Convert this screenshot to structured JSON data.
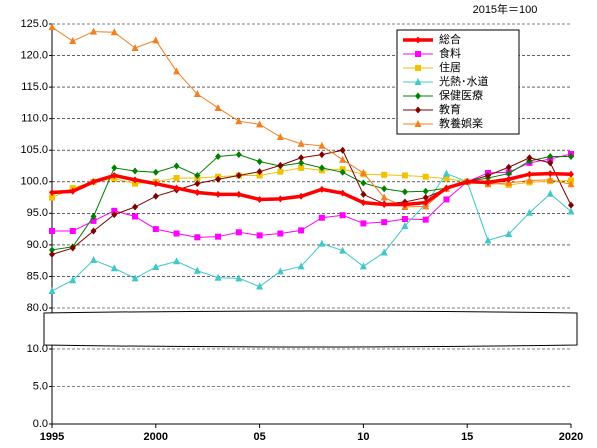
{
  "chart_data": {
    "type": "line",
    "annotation": "2015年＝100",
    "x": [
      1995,
      1996,
      1997,
      1998,
      1999,
      2000,
      2001,
      2002,
      2003,
      2004,
      2005,
      2006,
      2007,
      2008,
      2009,
      2010,
      2011,
      2012,
      2013,
      2014,
      2015,
      2016,
      2017,
      2018,
      2019,
      2020
    ],
    "xlim": [
      1995,
      2020
    ],
    "xticks": [
      1995,
      2000,
      {
        "value": 2005,
        "label": "05"
      },
      {
        "value": 2010,
        "label": "10"
      },
      {
        "value": 2015,
        "label": "15"
      },
      2020
    ],
    "ylim": [
      0,
      125
    ],
    "ybreak": [
      10,
      80
    ],
    "yticks": [
      {
        "value": 125,
        "label": "125.0"
      },
      {
        "value": 120,
        "label": "120.0"
      },
      {
        "value": 115,
        "label": "115.0"
      },
      {
        "value": 110,
        "label": "110.0"
      },
      {
        "value": 105,
        "label": "105.0"
      },
      {
        "value": 100,
        "label": "100.0"
      },
      {
        "value": 95,
        "label": "95.0"
      },
      {
        "value": 90,
        "label": "90.0"
      },
      {
        "value": 85,
        "label": "85.0"
      },
      {
        "value": 80,
        "label": "80.0"
      },
      {
        "value": 10,
        "label": "10.0"
      },
      {
        "value": 5,
        "label": "5.0"
      },
      {
        "value": 0,
        "label": "0.0"
      }
    ],
    "grid": true,
    "legend": "top-right",
    "series": [
      {
        "name": "総合",
        "color": "#ff0000",
        "marker": "diamond",
        "width": 3.5,
        "values": [
          98.3,
          98.5,
          100,
          101,
          100.3,
          99.7,
          99,
          98.3,
          98,
          98,
          97.2,
          97.3,
          97.7,
          98.8,
          98.2,
          96.7,
          96.4,
          96.4,
          96.7,
          99,
          100,
          99.9,
          100.4,
          101.2,
          101.3,
          101.2
        ]
      },
      {
        "name": "食料",
        "color": "#ff00ff",
        "marker": "square",
        "width": 1,
        "values": [
          92.2,
          92.2,
          93.8,
          95.4,
          94.5,
          92.5,
          91.8,
          91.2,
          91.3,
          92,
          91.5,
          91.8,
          92.3,
          94.3,
          94.7,
          93.4,
          93.6,
          94.1,
          94,
          97.2,
          100,
          101.4,
          101.5,
          103,
          103.6,
          104.4
        ]
      },
      {
        "name": "住居",
        "color": "#f2c200",
        "marker": "square",
        "width": 1,
        "values": [
          97.5,
          99,
          100,
          100.5,
          99.7,
          100,
          100.6,
          100.6,
          100.8,
          101,
          101,
          101.6,
          102.2,
          101.8,
          102,
          101.2,
          101.1,
          101,
          100.8,
          100.5,
          100,
          99.8,
          99.5,
          99.9,
          100.1,
          100.2
        ]
      },
      {
        "name": "光熱･水道",
        "color": "#40c8c8",
        "marker": "triangle",
        "width": 1,
        "values": [
          82.7,
          84.4,
          87.6,
          86.3,
          84.7,
          86.5,
          87.4,
          85.9,
          84.8,
          84.7,
          83.4,
          85.8,
          86.6,
          90.2,
          89.1,
          86.6,
          88.8,
          93,
          96.5,
          101.3,
          100,
          90.7,
          91.7,
          95.1,
          98.1,
          95.3
        ]
      },
      {
        "name": "保健医療",
        "color": "#008000",
        "marker": "diamond",
        "width": 1,
        "values": [
          89.2,
          89.7,
          94.5,
          102.2,
          101.7,
          101.5,
          102.5,
          101,
          104,
          104.3,
          103.2,
          102.5,
          103,
          102.2,
          101.5,
          99.8,
          98.9,
          98.4,
          98.5,
          99,
          100,
          100.6,
          101.3,
          103.3,
          104,
          104
        ]
      },
      {
        "name": "教育",
        "color": "#800000",
        "marker": "diamond",
        "width": 1,
        "values": [
          88.5,
          89.5,
          92.2,
          94.8,
          96,
          97.7,
          98.7,
          99.7,
          100.4,
          101,
          101.6,
          102.6,
          103.8,
          104.3,
          105,
          98,
          96.5,
          96.8,
          97.5,
          98.9,
          100,
          101,
          102.3,
          103.8,
          103,
          96.3
        ]
      },
      {
        "name": "教養娯楽",
        "color": "#f08020",
        "marker": "triangle",
        "width": 1,
        "values": [
          124.5,
          122.3,
          123.8,
          123.7,
          121.2,
          122.4,
          117.5,
          113.9,
          111.7,
          109.6,
          109.1,
          107.1,
          106,
          105.7,
          103.5,
          101.4,
          97.5,
          96,
          96.1,
          98.9,
          100,
          99.6,
          99.8,
          100.2,
          100.3,
          99.6
        ]
      }
    ]
  }
}
